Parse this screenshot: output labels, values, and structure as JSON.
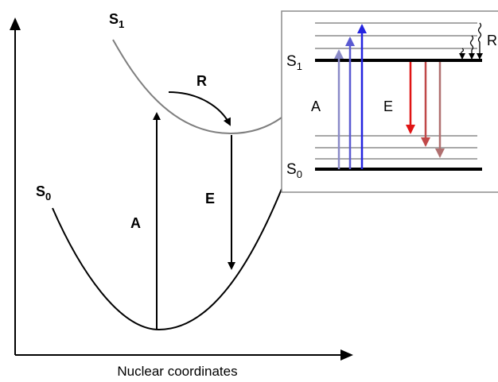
{
  "main_diagram": {
    "x_axis_label": "Nuclear coordinates",
    "s0_label": "S",
    "s0_sub": "0",
    "s1_label": "S",
    "s1_sub": "1",
    "absorption_label": "A",
    "emission_label": "E",
    "relaxation_label": "R"
  },
  "inset": {
    "s1_label": "S",
    "s1_sub": "1",
    "s0_label": "S",
    "s0_sub": "0",
    "absorption_label": "A",
    "emission_label": "E",
    "relaxation_label": "R",
    "absorption_arrow_colors": [
      "#8a8ac8",
      "#5a5ad2",
      "#2424e0"
    ],
    "emission_arrow_colors": [
      "#e01414",
      "#c04848",
      "#b07070"
    ]
  },
  "colors": {
    "ink": "#000000",
    "s1_curve": "#7f7f7f",
    "inset_border": "#8c8c8c",
    "vibrational_level": "#8c8c8c"
  }
}
